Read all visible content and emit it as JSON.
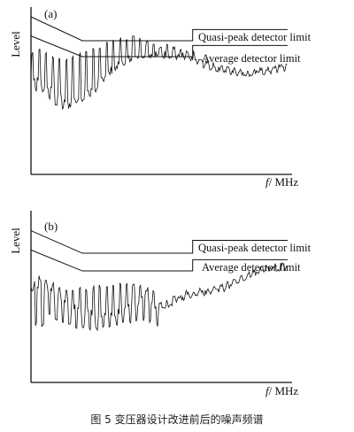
{
  "figure": {
    "caption": "图 5   变压器设计改进前后的噪声频谱"
  },
  "chart_data": [
    {
      "panel": "(a)",
      "type": "line",
      "ylabel": "Level",
      "xlabel_var": "f",
      "xlabel_unit": "/ MHz",
      "limit_labels": {
        "quasi_peak": "Quasi-peak detector limit",
        "average": "Average detector limit"
      },
      "ylim": [
        0,
        100
      ],
      "xlim": [
        0,
        100
      ],
      "grid": false,
      "quasi_peak_limit": [
        [
          0,
          95
        ],
        [
          20,
          80
        ],
        [
          63,
          80
        ],
        [
          63,
          87
        ],
        [
          100,
          87
        ]
      ],
      "average_limit": [
        [
          0,
          83
        ],
        [
          20,
          70
        ],
        [
          63,
          70
        ],
        [
          63,
          77
        ],
        [
          100,
          77
        ]
      ],
      "noise": {
        "base": [
          [
            0,
            58
          ],
          [
            5,
            52
          ],
          [
            10,
            46
          ],
          [
            15,
            42
          ],
          [
            20,
            46
          ],
          [
            25,
            52
          ],
          [
            30,
            60
          ],
          [
            35,
            66
          ],
          [
            40,
            70
          ],
          [
            45,
            72
          ],
          [
            50,
            72
          ],
          [
            55,
            71
          ],
          [
            60,
            70
          ],
          [
            65,
            67
          ],
          [
            70,
            64
          ],
          [
            75,
            62
          ],
          [
            80,
            61
          ],
          [
            85,
            60
          ],
          [
            90,
            61
          ],
          [
            95,
            62
          ],
          [
            100,
            64
          ]
        ],
        "spikes": [
          [
            2,
            77
          ],
          [
            6,
            73
          ],
          [
            9,
            70
          ],
          [
            12,
            69
          ],
          [
            15,
            70
          ],
          [
            18,
            72
          ],
          [
            21,
            74
          ],
          [
            24,
            76
          ],
          [
            27,
            78
          ],
          [
            30,
            80
          ],
          [
            33,
            82
          ],
          [
            36,
            82
          ],
          [
            38,
            83
          ],
          [
            40,
            83
          ],
          [
            42,
            82
          ],
          [
            44,
            80
          ],
          [
            46,
            80
          ],
          [
            48,
            79
          ],
          [
            50,
            78
          ],
          [
            55,
            78
          ],
          [
            60,
            76
          ],
          [
            65,
            73
          ]
        ],
        "dip_floor": [
          [
            3,
            50
          ],
          [
            7,
            44
          ],
          [
            10,
            38
          ],
          [
            13,
            36
          ],
          [
            16,
            38
          ],
          [
            19,
            40
          ],
          [
            22,
            42
          ],
          [
            26,
            48
          ]
        ]
      }
    },
    {
      "panel": "(b)",
      "type": "line",
      "ylabel": "Level",
      "xlabel_var": "f",
      "xlabel_unit": "/ MHz",
      "limit_labels": {
        "quasi_peak": "Quasi-peak detector limit",
        "average": "Average detector limit"
      },
      "ylim": [
        0,
        100
      ],
      "xlim": [
        0,
        100
      ],
      "grid": false,
      "quasi_peak_limit": [
        [
          0,
          92
        ],
        [
          20,
          78
        ],
        [
          63,
          78
        ],
        [
          63,
          86
        ],
        [
          100,
          86
        ]
      ],
      "average_limit": [
        [
          0,
          80
        ],
        [
          20,
          67
        ],
        [
          63,
          67
        ],
        [
          63,
          74
        ],
        [
          100,
          74
        ]
      ],
      "noise": {
        "base": [
          [
            0,
            60
          ],
          [
            5,
            58
          ],
          [
            10,
            52
          ],
          [
            15,
            46
          ],
          [
            20,
            42
          ],
          [
            25,
            40
          ],
          [
            30,
            40
          ],
          [
            35,
            42
          ],
          [
            40,
            46
          ],
          [
            45,
            50
          ],
          [
            50,
            44
          ],
          [
            55,
            48
          ],
          [
            60,
            52
          ],
          [
            65,
            54
          ],
          [
            70,
            55
          ],
          [
            75,
            57
          ],
          [
            80,
            60
          ],
          [
            85,
            64
          ],
          [
            90,
            68
          ],
          [
            95,
            69
          ],
          [
            100,
            70
          ]
        ],
        "spikes": [
          [
            1,
            66
          ],
          [
            4,
            64
          ],
          [
            8,
            60
          ],
          [
            12,
            58
          ],
          [
            16,
            56
          ],
          [
            20,
            57
          ],
          [
            24,
            58
          ],
          [
            28,
            60
          ],
          [
            32,
            60
          ],
          [
            36,
            61
          ],
          [
            40,
            60
          ],
          [
            44,
            58
          ],
          [
            48,
            56
          ]
        ],
        "dip_floor": [
          [
            6,
            40
          ],
          [
            10,
            36
          ],
          [
            14,
            32
          ],
          [
            18,
            30
          ],
          [
            22,
            30
          ],
          [
            26,
            30
          ],
          [
            30,
            31
          ],
          [
            34,
            32
          ],
          [
            38,
            34
          ],
          [
            42,
            36
          ],
          [
            46,
            34
          ],
          [
            50,
            32
          ]
        ]
      }
    }
  ]
}
